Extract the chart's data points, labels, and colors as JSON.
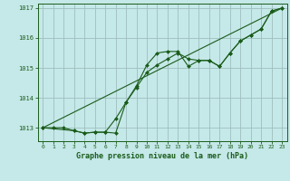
{
  "xlabel": "Graphe pression niveau de la mer (hPa)",
  "bg_color": "#c5e8e8",
  "grid_color": "#9fbfbf",
  "line_color": "#1a5c1a",
  "marker_color": "#1a5c1a",
  "ylim": [
    1012.55,
    1017.15
  ],
  "xlim": [
    -0.5,
    23.5
  ],
  "yticks": [
    1013,
    1014,
    1015,
    1016,
    1017
  ],
  "xticks": [
    0,
    1,
    2,
    3,
    4,
    5,
    6,
    7,
    8,
    9,
    10,
    11,
    12,
    13,
    14,
    15,
    16,
    17,
    18,
    19,
    20,
    21,
    22,
    23
  ],
  "series1_x": [
    0,
    1,
    2,
    3,
    4,
    5,
    6,
    7,
    8,
    9,
    10,
    11,
    12,
    13,
    14,
    15,
    16,
    17,
    18,
    19,
    20,
    21,
    22,
    23
  ],
  "series1_y": [
    1013.0,
    1013.0,
    1013.0,
    1012.9,
    1012.82,
    1012.85,
    1012.85,
    1012.82,
    1013.85,
    1014.4,
    1015.1,
    1015.5,
    1015.55,
    1015.55,
    1015.05,
    1015.25,
    1015.25,
    1015.05,
    1015.5,
    1015.9,
    1016.1,
    1016.3,
    1016.9,
    1017.0
  ],
  "series2_x": [
    0,
    3,
    4,
    5,
    6,
    7,
    8,
    9,
    10,
    11,
    12,
    13,
    14,
    15,
    16,
    17,
    18,
    19,
    20,
    21,
    22,
    23
  ],
  "series2_y": [
    1013.0,
    1012.9,
    1012.82,
    1012.85,
    1012.85,
    1013.3,
    1013.85,
    1014.35,
    1014.85,
    1015.1,
    1015.3,
    1015.5,
    1015.3,
    1015.25,
    1015.25,
    1015.05,
    1015.5,
    1015.9,
    1016.1,
    1016.3,
    1016.9,
    1017.0
  ],
  "series3_x": [
    0,
    23
  ],
  "series3_y": [
    1013.0,
    1017.0
  ]
}
